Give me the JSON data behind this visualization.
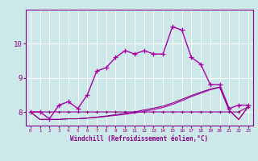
{
  "xlabel": "Windchill (Refroidissement éolien,°C)",
  "background_color": "#cce8e8",
  "grid_color": "#ffffff",
  "line_color_dark": "#880088",
  "line_color_mid": "#aa00aa",
  "hours": [
    0,
    1,
    2,
    3,
    4,
    5,
    6,
    7,
    8,
    9,
    10,
    11,
    12,
    13,
    14,
    15,
    16,
    17,
    18,
    19,
    20,
    21,
    22,
    23
  ],
  "main_line": [
    8.0,
    8.0,
    7.8,
    8.2,
    8.3,
    8.1,
    8.5,
    9.2,
    9.3,
    9.6,
    9.8,
    9.7,
    9.8,
    9.7,
    9.7,
    10.5,
    10.4,
    9.6,
    9.4,
    8.8,
    8.8,
    8.1,
    8.2,
    8.2
  ],
  "flat_line1": [
    8.0,
    8.0,
    8.0,
    8.0,
    8.0,
    8.0,
    8.0,
    8.0,
    8.0,
    8.0,
    8.0,
    8.0,
    8.0,
    8.0,
    8.0,
    8.0,
    8.0,
    8.0,
    8.0,
    8.0,
    8.0,
    8.0,
    8.0,
    8.15
  ],
  "flat_line2": [
    8.0,
    7.78,
    7.78,
    7.78,
    7.8,
    7.8,
    7.82,
    7.84,
    7.87,
    7.9,
    7.93,
    7.97,
    8.02,
    8.07,
    8.13,
    8.22,
    8.33,
    8.45,
    8.55,
    8.65,
    8.72,
    8.05,
    7.78,
    8.15
  ],
  "flat_line3": [
    8.0,
    7.78,
    7.78,
    7.78,
    7.8,
    7.8,
    7.82,
    7.85,
    7.88,
    7.92,
    7.96,
    8.0,
    8.06,
    8.11,
    8.17,
    8.26,
    8.37,
    8.48,
    8.58,
    8.67,
    8.73,
    8.05,
    7.78,
    8.15
  ],
  "ylim": [
    7.6,
    11.0
  ],
  "yticks": [
    8,
    9,
    10
  ],
  "xticks": [
    0,
    1,
    2,
    3,
    4,
    5,
    6,
    7,
    8,
    9,
    10,
    11,
    12,
    13,
    14,
    15,
    16,
    17,
    18,
    19,
    20,
    21,
    22,
    23
  ]
}
